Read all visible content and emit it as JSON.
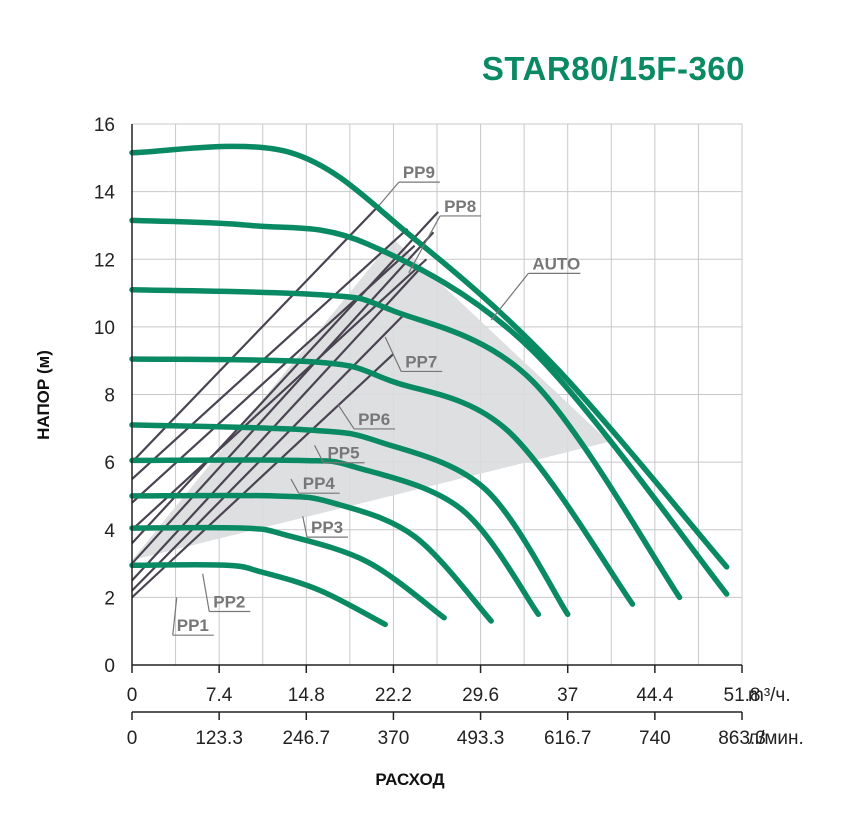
{
  "chart_data": {
    "type": "line",
    "title": "STAR80/15F-360",
    "ylabel": "НАПОР (м)",
    "xlabel": "РАСХОД",
    "ylim": [
      0,
      16
    ],
    "xlim": [
      0,
      51.8
    ],
    "y_ticks": [
      "0",
      "2",
      "4",
      "6",
      "8",
      "10",
      "12",
      "14",
      "16"
    ],
    "x_ticks_m3h": [
      "0",
      "7.4",
      "14.8",
      "22.2",
      "29.6",
      "37",
      "44.4",
      "51.8"
    ],
    "x_unit_m3h": "m³/ч.",
    "x_ticks_lmin": [
      "0",
      "123.3",
      "246.7",
      "370",
      "493.3",
      "616.7",
      "740",
      "863.3"
    ],
    "x_unit_lmin": "л/мин.",
    "grid": true,
    "auto_region": [
      [
        0,
        3.1
      ],
      [
        22.2,
        12.6
      ],
      [
        40.5,
        6.6
      ]
    ],
    "series": [
      {
        "name": "PP1",
        "points": [
          [
            0,
            2.95
          ],
          [
            8,
            2.95
          ],
          [
            11,
            2.75
          ],
          [
            16,
            2.2
          ],
          [
            21.5,
            1.2
          ]
        ]
      },
      {
        "name": "PP2",
        "points": [
          [
            0,
            4.05
          ],
          [
            9.5,
            4.05
          ],
          [
            13,
            3.85
          ],
          [
            20,
            3.05
          ],
          [
            26.5,
            1.4
          ]
        ]
      },
      {
        "name": "PP3",
        "points": [
          [
            0,
            5.0
          ],
          [
            12,
            5.0
          ],
          [
            17,
            4.8
          ],
          [
            24,
            3.8
          ],
          [
            30.5,
            1.3
          ]
        ]
      },
      {
        "name": "PP4",
        "points": [
          [
            0,
            6.05
          ],
          [
            14,
            6.05
          ],
          [
            19,
            5.85
          ],
          [
            28,
            4.6
          ],
          [
            34.5,
            1.5
          ]
        ]
      },
      {
        "name": "PP5",
        "points": [
          [
            0,
            7.1
          ],
          [
            15,
            6.95
          ],
          [
            21,
            6.6
          ],
          [
            30,
            5.2
          ],
          [
            37,
            1.5
          ]
        ]
      },
      {
        "name": "PP6",
        "points": [
          [
            0,
            9.05
          ],
          [
            16,
            8.95
          ],
          [
            22,
            8.4
          ],
          [
            32,
            6.9
          ],
          [
            42.5,
            1.8
          ]
        ]
      },
      {
        "name": "PP7",
        "points": [
          [
            0,
            11.1
          ],
          [
            16,
            10.95
          ],
          [
            22,
            10.5
          ],
          [
            34,
            8.4
          ],
          [
            46.5,
            2.0
          ]
        ]
      },
      {
        "name": "PP8",
        "points": [
          [
            0,
            13.15
          ],
          [
            10,
            13.0
          ],
          [
            20,
            12.45
          ],
          [
            34,
            9.3
          ],
          [
            50.5,
            2.1
          ]
        ]
      },
      {
        "name": "PP9",
        "points": [
          [
            0,
            15.15
          ],
          [
            13.5,
            15.15
          ],
          [
            24,
            12.6
          ],
          [
            36,
            8.8
          ],
          [
            50.5,
            2.9
          ]
        ]
      }
    ],
    "system_lines": [
      {
        "label": "PP1",
        "points": [
          [
            0,
            2.0
          ],
          [
            22.2,
            9.2
          ]
        ]
      },
      {
        "label": "PP2",
        "points": [
          [
            0,
            2.2
          ],
          [
            23.2,
            10.4
          ]
        ]
      },
      {
        "label": "PP3",
        "points": [
          [
            0,
            2.5
          ],
          [
            24.4,
            11.7
          ]
        ]
      },
      {
        "label": "PP4",
        "points": [
          [
            0,
            3.0
          ],
          [
            25.6,
            12.8
          ]
        ]
      },
      {
        "label": "PP5",
        "points": [
          [
            0,
            3.6
          ],
          [
            26.0,
            13.4
          ]
        ]
      },
      {
        "label": "PP6",
        "points": [
          [
            0,
            4.0
          ],
          [
            25.0,
            12.0
          ]
        ]
      },
      {
        "label": "PP7",
        "points": [
          [
            0,
            4.8
          ],
          [
            24.0,
            12.4
          ]
        ]
      },
      {
        "label": "PP8",
        "points": [
          [
            0,
            5.5
          ],
          [
            23.4,
            12.9
          ]
        ]
      },
      {
        "label": "PP9",
        "points": [
          [
            0,
            6.0
          ],
          [
            21.0,
            13.6
          ]
        ]
      }
    ],
    "annotations": [
      {
        "text": "PP9",
        "anchor": [
          21.0,
          13.6
        ],
        "label_at": [
          23.0,
          14.4
        ]
      },
      {
        "text": "PP8",
        "anchor": [
          23.5,
          11.6
        ],
        "label_at": [
          26.5,
          13.4
        ]
      },
      {
        "text": "AUTO",
        "anchor": [
          30.5,
          10.2
        ],
        "label_at": [
          34.0,
          11.7
        ]
      },
      {
        "text": "PP7",
        "anchor": [
          21.5,
          9.7
        ],
        "label_at": [
          23.2,
          8.8
        ]
      },
      {
        "text": "PP6",
        "anchor": [
          17.5,
          7.7
        ],
        "label_at": [
          19.2,
          7.1
        ]
      },
      {
        "text": "PP5",
        "anchor": [
          15.5,
          6.5
        ],
        "label_at": [
          16.6,
          6.1
        ]
      },
      {
        "text": "PP4",
        "anchor": [
          13.5,
          5.5
        ],
        "label_at": [
          14.5,
          5.2
        ]
      },
      {
        "text": "PP3",
        "anchor": [
          14.5,
          4.4
        ],
        "label_at": [
          15.2,
          3.9
        ]
      },
      {
        "text": "PP2",
        "anchor": [
          6.0,
          2.7
        ],
        "label_at": [
          6.9,
          1.7
        ]
      },
      {
        "text": "PP1",
        "anchor": [
          3.8,
          2.0
        ],
        "label_at": [
          3.8,
          1.0
        ]
      }
    ]
  }
}
